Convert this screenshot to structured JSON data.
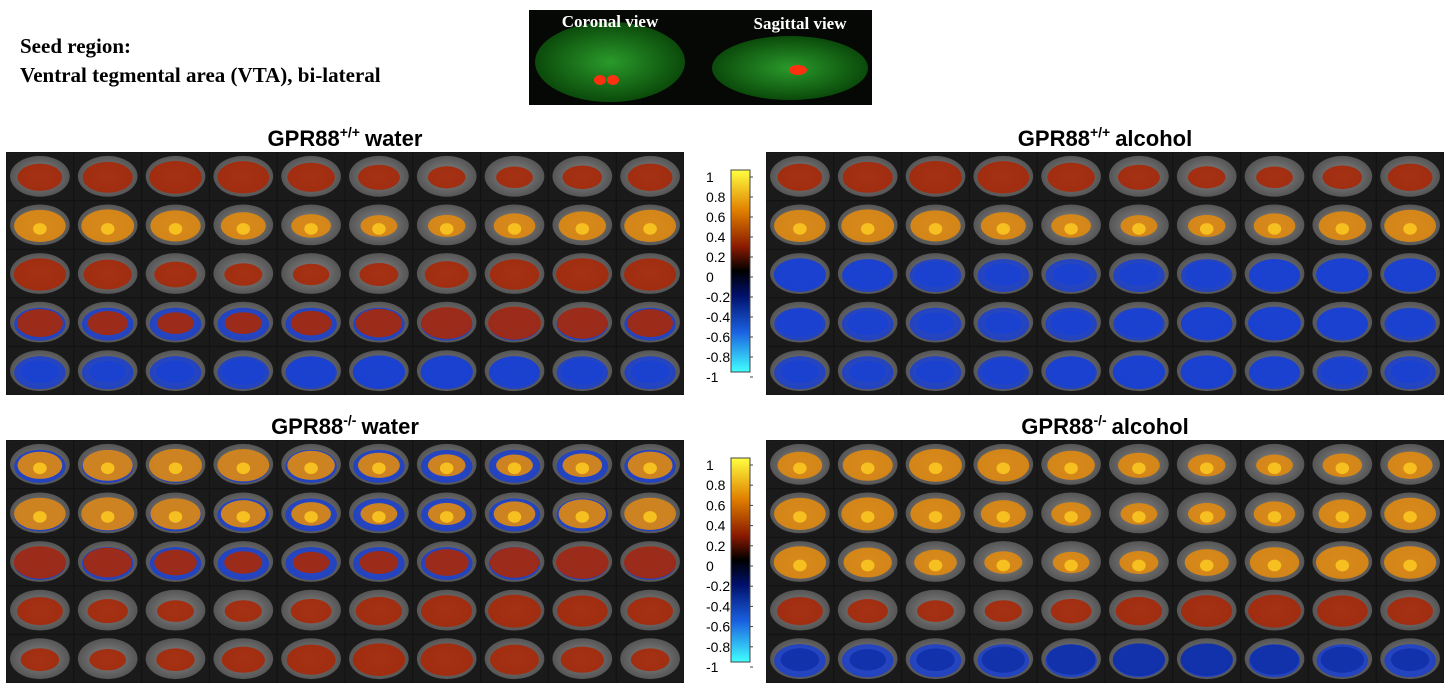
{
  "seed": {
    "label": "Seed region:",
    "region": "Ventral tegmental area (VTA), bi-lateral"
  },
  "views": {
    "coronal": "Coronal view",
    "sagittal": "Sagittal view"
  },
  "panels": [
    {
      "gene": "GPR88",
      "genotype": "+/+",
      "condition": "water"
    },
    {
      "gene": "GPR88",
      "genotype": "+/+",
      "condition": "alcohol"
    },
    {
      "gene": "GPR88",
      "genotype": "-/-",
      "condition": "water"
    },
    {
      "gene": "GPR88",
      "genotype": "-/-",
      "condition": "alcohol"
    }
  ],
  "colorbars": [
    {
      "ticks": [
        1,
        0.8,
        0.6,
        0.4,
        0.2,
        0,
        -0.2,
        -0.4,
        -0.6,
        -0.8,
        -1
      ]
    },
    {
      "ticks": [
        1,
        0.8,
        0.6,
        0.4,
        0.2,
        0,
        -0.2,
        -0.4,
        -0.6,
        -0.8,
        -1
      ]
    }
  ]
}
